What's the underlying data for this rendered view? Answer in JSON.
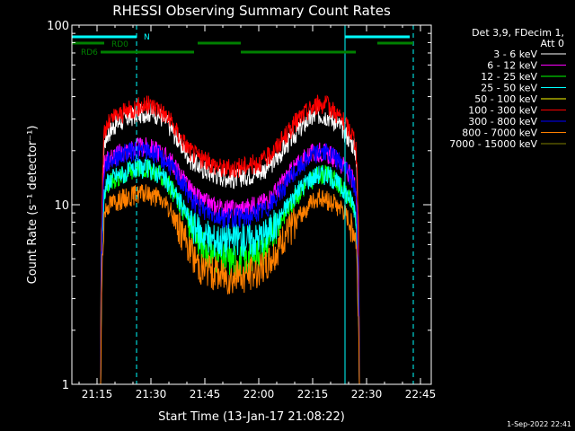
{
  "chart_data": {
    "type": "line",
    "title": "RHESSI Observing Summary Count Rates",
    "xlabel": "Start Time (13-Jan-17 21:08:22)",
    "ylabel": "Count Rate (s⁻¹ detector⁻¹)",
    "yscale": "log",
    "ylim": [
      1,
      100
    ],
    "xlim": [
      "21:08",
      "22:48"
    ],
    "x_ticks": [
      "21:15",
      "21:30",
      "21:45",
      "22:00",
      "22:15",
      "22:30",
      "22:45"
    ],
    "y_ticks": [
      "1",
      "10",
      "100"
    ],
    "grid": false,
    "legend_position": "right",
    "legend_title": [
      "Det 3,9, FDecim 1,",
      "Att 0"
    ],
    "x_knots": [
      "21:16",
      "21:17",
      "21:18",
      "21:20",
      "21:23",
      "21:26",
      "21:29",
      "21:32",
      "21:35",
      "21:38",
      "21:41",
      "21:44",
      "21:47",
      "21:50",
      "21:53",
      "21:56",
      "21:59",
      "22:02",
      "22:05",
      "22:08",
      "22:11",
      "22:14",
      "22:17",
      "22:20",
      "22:23",
      "22:26",
      "22:27",
      "22:28"
    ],
    "series": [
      {
        "name": "3 - 6 keV",
        "color": "#ffffff",
        "values": [
          1,
          22,
          25,
          28,
          30,
          32,
          33,
          32,
          28,
          22,
          18,
          16,
          15,
          14.5,
          14,
          14.5,
          15,
          16,
          18,
          22,
          26,
          30,
          32,
          31,
          27,
          22,
          20,
          1
        ]
      },
      {
        "name": "6 - 12 keV",
        "color": "#ff00ff",
        "values": [
          1,
          17,
          18,
          19,
          20,
          21,
          21,
          20,
          18,
          15,
          12,
          10.5,
          10,
          9.5,
          9.5,
          9.5,
          10,
          10.5,
          12,
          14.5,
          17,
          19,
          20,
          19,
          17,
          14,
          12,
          1
        ]
      },
      {
        "name": "12 - 25 keV",
        "color": "#00ff00",
        "values": [
          1,
          12,
          13,
          14,
          15,
          16,
          16,
          15,
          13,
          10,
          7.5,
          6,
          5.5,
          5,
          5,
          5,
          5.5,
          6,
          7.5,
          9.5,
          11.5,
          13.5,
          15,
          14.5,
          12.5,
          10,
          8.5,
          1
        ]
      },
      {
        "name": "25 - 50 keV",
        "color": "#00ffff",
        "values": [
          1,
          12,
          13.5,
          14.5,
          15,
          16,
          16,
          15,
          13,
          10.5,
          8,
          7,
          6.5,
          6.5,
          6.5,
          6.5,
          6.5,
          7,
          8,
          10,
          12,
          14,
          15,
          14.5,
          12.5,
          10.5,
          9,
          1
        ]
      },
      {
        "name": "100 - 300 keV",
        "color": "#ff0000",
        "values": [
          1,
          25,
          28,
          31,
          33,
          35,
          36,
          35,
          30,
          24,
          20,
          18,
          17,
          16,
          16,
          16.5,
          17,
          18,
          21,
          25,
          30,
          34,
          37,
          35,
          30,
          25,
          22,
          1
        ]
      },
      {
        "name": "300 - 800 keV",
        "color": "#0000ff",
        "values": [
          1,
          16,
          17.5,
          18.5,
          19.5,
          20,
          20,
          19,
          17,
          14,
          11,
          9.5,
          9,
          8.5,
          8.5,
          8.5,
          9,
          9.5,
          11,
          13.5,
          16,
          18.5,
          20,
          19,
          17,
          14,
          12,
          1
        ]
      },
      {
        "name": "800 - 7000 keV",
        "color": "#ff8000",
        "values": [
          1,
          9,
          10,
          10.5,
          11,
          11.5,
          11.5,
          11,
          9.5,
          7.5,
          5.5,
          4.5,
          4.3,
          4.1,
          4,
          4.1,
          4.3,
          4.6,
          5.5,
          7,
          8.5,
          10,
          11,
          10.5,
          9.5,
          7.5,
          6.5,
          1
        ]
      }
    ],
    "legend_entries": [
      {
        "label": "3 - 6 keV",
        "color": "#ffffff"
      },
      {
        "label": "6 - 12 keV",
        "color": "#ff00ff"
      },
      {
        "label": "12 - 25 keV",
        "color": "#00ff00"
      },
      {
        "label": "25 - 50 keV",
        "color": "#00ffff"
      },
      {
        "label": "50 - 100 keV",
        "color": "#ffff00"
      },
      {
        "label": "100 - 300 keV",
        "color": "#ff0000"
      },
      {
        "label": "300 - 800 keV",
        "color": "#0000ff"
      },
      {
        "label": "800 - 7000 keV",
        "color": "#ff8000"
      },
      {
        "label": "7000 - 15000 keV",
        "color": "#808000"
      }
    ],
    "flag_bars": [
      {
        "label": "N",
        "color": "#00ffff",
        "segments": [
          [
            "21:08",
            "21:26"
          ],
          [
            "22:24",
            "22:42"
          ]
        ]
      },
      {
        "label": "RD0",
        "color": "#008000",
        "segments": [
          [
            "21:08",
            "21:17"
          ],
          [
            "21:43",
            "21:55"
          ],
          [
            "22:33",
            "22:43"
          ]
        ]
      },
      {
        "label": "RD6",
        "color": "#008000",
        "segments": [
          [
            "21:16",
            "21:42"
          ],
          [
            "21:55",
            "22:27"
          ]
        ]
      }
    ],
    "vertical_lines": [
      {
        "color": "#00ffff",
        "style": "solid",
        "x": "21:08"
      },
      {
        "color": "#00ffff",
        "style": "dashed",
        "x": "21:26"
      },
      {
        "color": "#00ffff",
        "style": "solid",
        "x": "22:24"
      },
      {
        "color": "#00ffff",
        "style": "dashed",
        "x": "22:43"
      }
    ],
    "footer_timestamp": "1-Sep-2022 22:41"
  }
}
